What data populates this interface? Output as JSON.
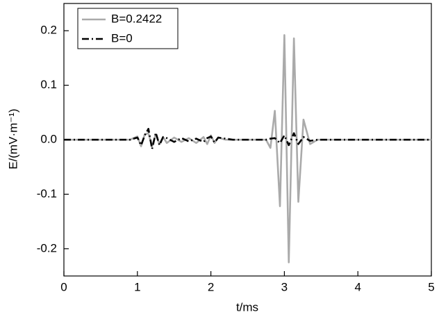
{
  "chart_data": {
    "type": "line",
    "xlabel": "t/ms",
    "ylabel": "E/(mV·m⁻¹)",
    "x": [
      0,
      0.9,
      1.0,
      1.05,
      1.1,
      1.15,
      1.2,
      1.25,
      1.3,
      1.35,
      1.4,
      1.5,
      1.6,
      1.7,
      1.8,
      1.9,
      1.95,
      2.0,
      2.05,
      2.1,
      2.2,
      2.3,
      2.75,
      2.81,
      2.87,
      2.94,
      3.0,
      3.06,
      3.13,
      3.19,
      3.26,
      3.35,
      3.45,
      5
    ],
    "series": [
      {
        "name": "B=0.2422",
        "color": "#aaaaaa",
        "line_style": "solid",
        "values": [
          0,
          0,
          0.006,
          -0.012,
          0.01,
          0.012,
          -0.012,
          0.01,
          -0.008,
          0.005,
          -0.006,
          0.004,
          -0.004,
          0.003,
          -0.006,
          0.005,
          -0.008,
          0.008,
          -0.006,
          0.004,
          0,
          0,
          0,
          -0.015,
          0.053,
          -0.122,
          0.192,
          -0.225,
          0.186,
          -0.114,
          0.037,
          -0.008,
          0,
          0
        ]
      },
      {
        "name": "B=0",
        "color": "#000000",
        "line_style": "dash-dot",
        "values": [
          0,
          0,
          0.004,
          -0.01,
          0.008,
          0.02,
          -0.017,
          0.013,
          -0.01,
          0.005,
          0.003,
          -0.004,
          0.003,
          -0.003,
          0.002,
          -0.004,
          0.003,
          0.006,
          -0.005,
          0.004,
          0.002,
          0,
          0,
          0.002,
          0.003,
          -0.006,
          0.008,
          -0.01,
          0.012,
          -0.008,
          0.005,
          -0.002,
          0,
          0
        ]
      }
    ],
    "xlim": [
      0,
      5
    ],
    "xticks": [
      0,
      1,
      2,
      3,
      4,
      5
    ],
    "ylim": [
      -0.25,
      0.25
    ],
    "yticks": [
      -0.2,
      -0.1,
      {
        "value": 0,
        "label": "0.0"
      },
      0.1,
      0.2
    ],
    "grid": false,
    "legend": "upper left"
  }
}
